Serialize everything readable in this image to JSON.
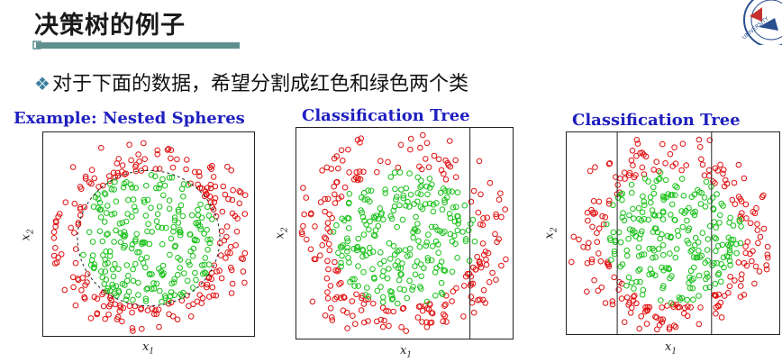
{
  "header": {
    "title": "决策树的例子",
    "bullet": "对于下面的数据，希望分割成红色和绿色两个类",
    "bullet_icon": "diamond-bullet-icon"
  },
  "logo": {
    "icon": "university-seal-icon",
    "text": "PEKING UNIVERSITY"
  },
  "colors": {
    "accent_bar": "#5f8f8f",
    "title_blue": "#1f1fbf",
    "red": "#e01010",
    "green": "#18c018"
  },
  "panels": [
    {
      "title": "Example: Nested Spheres",
      "xlabel": "x",
      "xsub": "1",
      "ylabel": "x",
      "ysub": "2"
    },
    {
      "title": "Classification Tree",
      "xlabel": "x",
      "xsub": "1",
      "ylabel": "x",
      "ysub": "2"
    },
    {
      "title": "Classification Tree",
      "xlabel": "x",
      "xsub": "1",
      "ylabel": "x",
      "ysub": "2"
    }
  ],
  "chart_data": [
    {
      "type": "scatter",
      "title": "Example: Nested Spheres",
      "xlabel": "x1",
      "ylabel": "x2",
      "series": [
        {
          "name": "",
          "color": "red"
        },
        {
          "name": "",
          "color": "green"
        }
      ],
      "boundary": "circle",
      "grid": false
    },
    {
      "type": "scatter",
      "title": "Classification Tree",
      "xlabel": "x1",
      "ylabel": "x2",
      "series": [
        {
          "name": "",
          "color": "red"
        },
        {
          "name": "",
          "color": "green"
        }
      ],
      "splits_x": [
        0.8
      ],
      "grid": false
    },
    {
      "type": "scatter",
      "title": "Classification Tree",
      "xlabel": "x1",
      "ylabel": "x2",
      "series": [
        {
          "name": "",
          "color": "red"
        },
        {
          "name": "",
          "color": "green"
        }
      ],
      "splits_x": [
        0.24,
        0.68
      ],
      "grid": false
    }
  ]
}
